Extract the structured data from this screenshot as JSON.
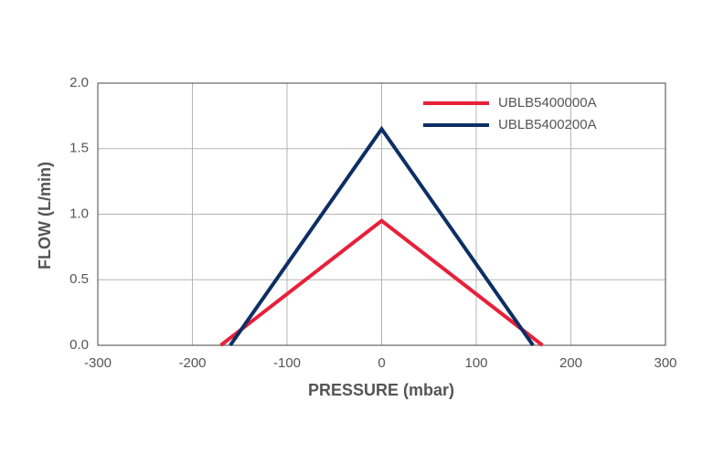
{
  "chart_data": {
    "type": "line",
    "x_label": "PRESSURE (mbar)",
    "y_label": "FLOW (L/min)",
    "series": [
      {
        "name": "UBLB5400000A",
        "color": "#e8203a",
        "x": [
          -170,
          0,
          170
        ],
        "values": [
          0,
          0.95,
          0
        ]
      },
      {
        "name": "UBLB5400200A",
        "color": "#0d2f63",
        "x": [
          -160,
          0,
          160
        ],
        "values": [
          0,
          1.65,
          0
        ]
      }
    ],
    "xlim": [
      -300,
      300
    ],
    "xticks": [
      -300,
      -200,
      -100,
      0,
      100,
      200,
      300
    ],
    "ylim": [
      0,
      2.0
    ],
    "yticks": [
      {
        "value": 0,
        "label": "0.0"
      },
      0.5,
      {
        "value": 1,
        "label": "1.0"
      },
      1.5,
      {
        "value": 2,
        "label": "2.0"
      }
    ],
    "grid": true,
    "legend": "top-right"
  }
}
